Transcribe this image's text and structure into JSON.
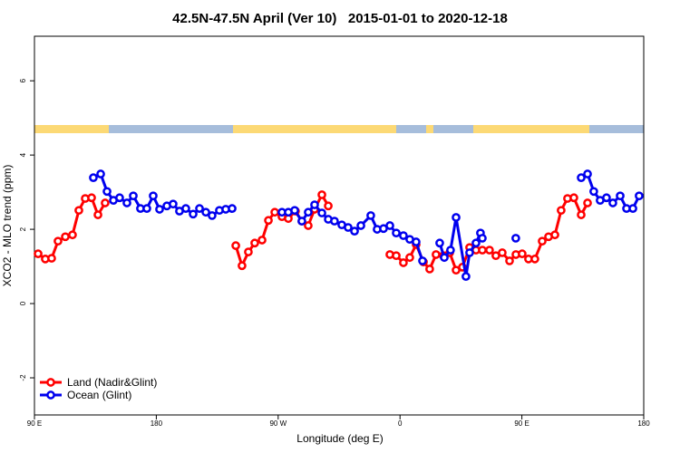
{
  "chart_data": {
    "type": "line",
    "title": "42.5N-47.5N April (Ver 10)   2015-01-01 to 2020-12-18",
    "x_label": "Longitude (deg E)",
    "y_label": "XCO2 - MLO trend (ppm)",
    "xlim": [
      90,
      540
    ],
    "ylim": [
      -3,
      7.2
    ],
    "xticks": [
      {
        "value": 90,
        "label": "90 E"
      },
      {
        "value": 180,
        "label": "180"
      },
      {
        "value": 270,
        "label": "90 W"
      },
      {
        "value": 360,
        "label": "0"
      },
      {
        "value": 450,
        "label": "90 E"
      },
      {
        "value": 540,
        "label": "180"
      }
    ],
    "yticks": [
      -2,
      0,
      2,
      4,
      6
    ],
    "legend": "bottom-left",
    "series": [
      {
        "name": "Land (Nadir&Glint)",
        "color": "#ff0000",
        "x": [
          92.7,
          98.0,
          102.7,
          107.4,
          112.8,
          118.1,
          122.8,
          127.5,
          132.2,
          136.9,
          142.2,
          null,
          238.7,
          243.3,
          248.0,
          252.7,
          258.1,
          262.8,
          267.5,
          272.8,
          277.5,
          282.8,
          287.5,
          292.2,
          296.9,
          302.3,
          307.0,
          null,
          352.5,
          357.2,
          362.5,
          367.2,
          371.9,
          377.3,
          381.9,
          386.6,
          392.0,
          396.7,
          401.4,
          406.1,
          411.4,
          416.1,
          420.8,
          426.1,
          430.8,
          435.5,
          440.9,
          445.6,
          450.2,
          454.9,
          459.6,
          465.0,
          469.7,
          474.4,
          479.0,
          483.7,
          488.4,
          493.8,
          498.5
        ],
        "values": [
          1.34,
          1.2,
          1.22,
          1.68,
          1.8,
          1.85,
          2.51,
          2.83,
          2.85,
          2.39,
          2.71,
          null,
          1.56,
          1.02,
          1.39,
          1.63,
          1.71,
          2.24,
          2.46,
          2.34,
          2.29,
          2.49,
          2.22,
          2.1,
          2.54,
          2.93,
          2.63,
          null,
          1.32,
          1.29,
          1.1,
          1.24,
          1.59,
          1.12,
          0.93,
          1.32,
          1.29,
          1.37,
          0.9,
          0.98,
          1.51,
          1.44,
          1.44,
          1.44,
          1.29,
          1.37,
          1.15,
          1.32,
          1.34,
          1.2,
          1.2,
          1.68,
          1.8,
          1.85,
          2.51,
          2.83,
          2.85,
          2.39,
          2.71
        ]
      },
      {
        "name": "Ocean (Glint)",
        "color": "#0000ee",
        "x": [
          133.5,
          138.9,
          143.6,
          148.3,
          152.9,
          158.3,
          163.0,
          168.3,
          173.0,
          177.7,
          182.4,
          187.8,
          192.4,
          197.1,
          201.8,
          207.2,
          211.9,
          216.6,
          221.2,
          226.6,
          231.3,
          236.0,
          null,
          272.8,
          277.5,
          282.2,
          287.5,
          292.2,
          296.9,
          302.3,
          307.0,
          311.6,
          317.0,
          321.7,
          326.4,
          331.1,
          338.4,
          343.1,
          347.8,
          352.5,
          357.2,
          362.5,
          367.2,
          371.9,
          376.6,
          null,
          389.3,
          392.7,
          397.3,
          401.4,
          408.7,
          411.4,
          416.1,
          419.4,
          420.8,
          null,
          445.5,
          null,
          493.8,
          498.5,
          503.1,
          507.8,
          512.5,
          517.2,
          522.6,
          527.3,
          532.0,
          536.6
        ],
        "values": [
          3.39,
          3.49,
          3.02,
          2.78,
          2.85,
          2.71,
          2.9,
          2.56,
          2.56,
          2.9,
          2.54,
          2.63,
          2.68,
          2.49,
          2.56,
          2.41,
          2.56,
          2.46,
          2.37,
          2.51,
          2.54,
          2.56,
          null,
          2.46,
          2.46,
          2.51,
          2.22,
          2.46,
          2.66,
          2.44,
          2.27,
          2.22,
          2.12,
          2.05,
          1.95,
          2.1,
          2.37,
          2.0,
          2.02,
          2.1,
          1.9,
          1.83,
          1.73,
          1.66,
          1.15,
          null,
          1.63,
          1.24,
          1.44,
          2.32,
          0.73,
          1.37,
          1.63,
          1.9,
          1.76,
          null,
          1.76,
          null,
          3.39,
          3.49,
          3.02,
          2.78,
          2.85,
          2.71,
          2.9,
          2.56,
          2.56,
          2.9
        ]
      }
    ]
  }
}
